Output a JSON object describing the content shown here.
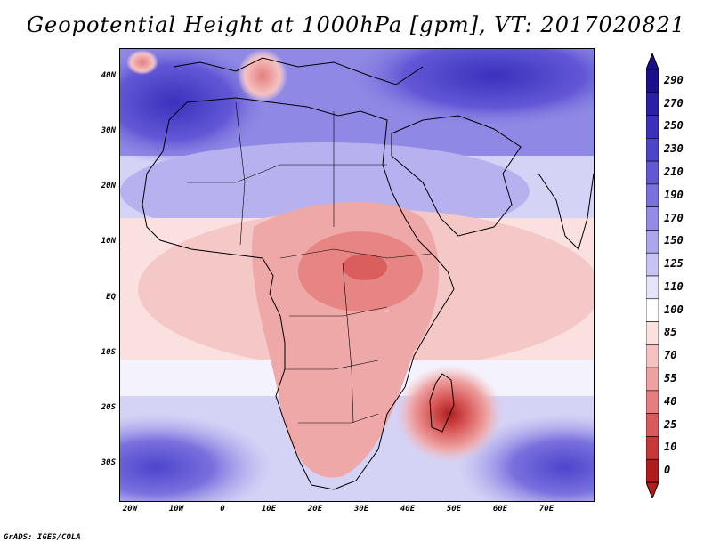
{
  "title": "Geopotential Height at 1000hPa [gpm], VT: 2017020821",
  "credit": "GrADS: IGES/COLA",
  "axes": {
    "lat_labels": [
      "40N",
      "30N",
      "20N",
      "10N",
      "EQ",
      "10S",
      "20S",
      "30S"
    ],
    "lon_labels": [
      "20W",
      "10W",
      "0",
      "10E",
      "20E",
      "30E",
      "40E",
      "50E",
      "60E",
      "70E"
    ]
  },
  "colorbar": {
    "levels": [
      "290",
      "270",
      "250",
      "230",
      "210",
      "190",
      "170",
      "150",
      "125",
      "110",
      "100",
      "85",
      "70",
      "55",
      "40",
      "25",
      "10",
      "0"
    ],
    "colors": [
      "#1c0f8f",
      "#2a1fa8",
      "#3a30bd",
      "#4d44cc",
      "#6258d6",
      "#7a71de",
      "#938be5",
      "#aca6ec",
      "#c7c4f3",
      "#e5e4fa",
      "#ffffff",
      "#fbe0e0",
      "#f5c1c1",
      "#eea1a1",
      "#e57f7f",
      "#d95a5a",
      "#c93838",
      "#b01c1c"
    ]
  }
}
